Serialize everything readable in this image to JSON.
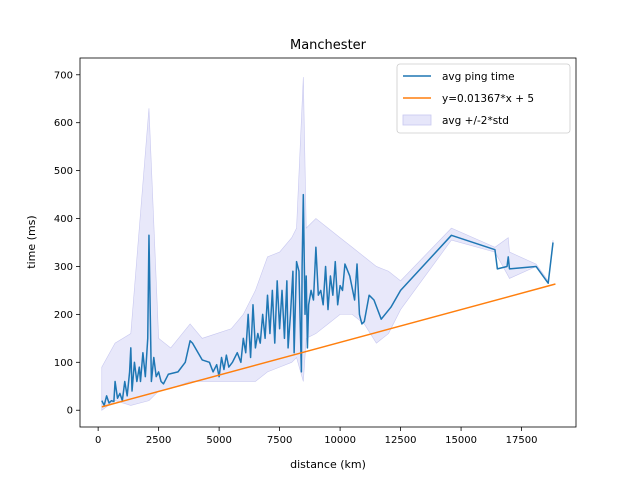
{
  "chart_data": {
    "type": "line",
    "title": "Manchester",
    "xlabel": "distance (km)",
    "ylabel": "time (ms)",
    "xlim": [
      -750,
      19750
    ],
    "ylim": [
      -35,
      735
    ],
    "xticks": [
      0,
      2500,
      5000,
      7500,
      10000,
      12500,
      15000,
      17500
    ],
    "yticks": [
      0,
      100,
      200,
      300,
      400,
      500,
      600,
      700
    ],
    "grid": false,
    "legend_position": "top-right",
    "colors": {
      "avg": "#1f77b4",
      "fit": "#ff7f0e",
      "band": "#e6e6fa",
      "band_edge": "#c8c8f0"
    },
    "series": [
      {
        "name": "avg ping time",
        "kind": "line",
        "x": [
          150,
          250,
          350,
          450,
          550,
          650,
          700,
          800,
          900,
          1000,
          1100,
          1200,
          1300,
          1350,
          1400,
          1500,
          1600,
          1700,
          1750,
          1850,
          1950,
          2050,
          2100,
          2200,
          2300,
          2400,
          2500,
          2600,
          2700,
          2900,
          3300,
          3600,
          3800,
          3900,
          4300,
          4600,
          4750,
          4900,
          5000,
          5100,
          5200,
          5300,
          5400,
          5550,
          5650,
          5750,
          5900,
          6000,
          6100,
          6200,
          6300,
          6400,
          6500,
          6600,
          6700,
          6800,
          6900,
          7000,
          7100,
          7200,
          7300,
          7400,
          7500,
          7600,
          7700,
          7800,
          7850,
          7950,
          8050,
          8100,
          8200,
          8300,
          8400,
          8430,
          8480,
          8550,
          8600,
          8650,
          8700,
          8800,
          8900,
          9000,
          9100,
          9200,
          9300,
          9400,
          9500,
          9600,
          9700,
          9800,
          9900,
          10000,
          10100,
          10200,
          10400,
          10600,
          10700,
          10800,
          10900,
          11000,
          11200,
          11400,
          11700,
          12100,
          12500,
          14600,
          16400,
          16500,
          16900,
          16950,
          17000,
          18100,
          18600,
          18800
        ],
        "y": [
          20,
          10,
          30,
          15,
          20,
          18,
          60,
          25,
          35,
          20,
          60,
          30,
          80,
          130,
          40,
          100,
          60,
          90,
          60,
          120,
          70,
          150,
          365,
          60,
          110,
          70,
          80,
          60,
          55,
          75,
          80,
          100,
          145,
          140,
          105,
          100,
          80,
          95,
          70,
          110,
          85,
          115,
          90,
          100,
          110,
          120,
          100,
          150,
          120,
          200,
          110,
          220,
          130,
          160,
          140,
          200,
          150,
          240,
          160,
          250,
          140,
          270,
          170,
          250,
          150,
          270,
          130,
          200,
          290,
          120,
          310,
          290,
          80,
          300,
          450,
          200,
          280,
          130,
          220,
          250,
          230,
          340,
          240,
          250,
          220,
          300,
          210,
          280,
          240,
          310,
          220,
          260,
          250,
          305,
          280,
          230,
          305,
          200,
          180,
          185,
          240,
          230,
          190,
          215,
          250,
          365,
          335,
          295,
          300,
          320,
          295,
          300,
          265,
          350
        ]
      },
      {
        "name": "y=0.01367*x + 5",
        "kind": "line",
        "x": [
          150,
          18900
        ],
        "y": [
          7.05,
          263.36
        ]
      },
      {
        "name": "avg +/-2*std",
        "kind": "band",
        "x": [
          150,
          700,
          1350,
          2100,
          2500,
          3000,
          3800,
          4300,
          4900,
          5500,
          6000,
          6500,
          7000,
          7500,
          8000,
          8200,
          8480,
          8600,
          9000,
          9500,
          10000,
          10500,
          11000,
          11500,
          12000,
          12500,
          14600,
          16400,
          16950,
          17000,
          18100,
          18600,
          18800
        ],
        "lower": [
          0,
          20,
          10,
          20,
          40,
          45,
          60,
          60,
          60,
          60,
          60,
          60,
          80,
          90,
          100,
          110,
          60,
          150,
          160,
          180,
          200,
          200,
          180,
          140,
          160,
          210,
          355,
          330,
          280,
          275,
          300,
          265,
          345
        ],
        "upper": [
          90,
          140,
          160,
          630,
          150,
          130,
          180,
          150,
          160,
          170,
          200,
          250,
          320,
          330,
          360,
          380,
          695,
          380,
          400,
          380,
          360,
          340,
          320,
          300,
          290,
          270,
          380,
          340,
          360,
          330,
          305,
          270,
          355
        ]
      }
    ]
  }
}
